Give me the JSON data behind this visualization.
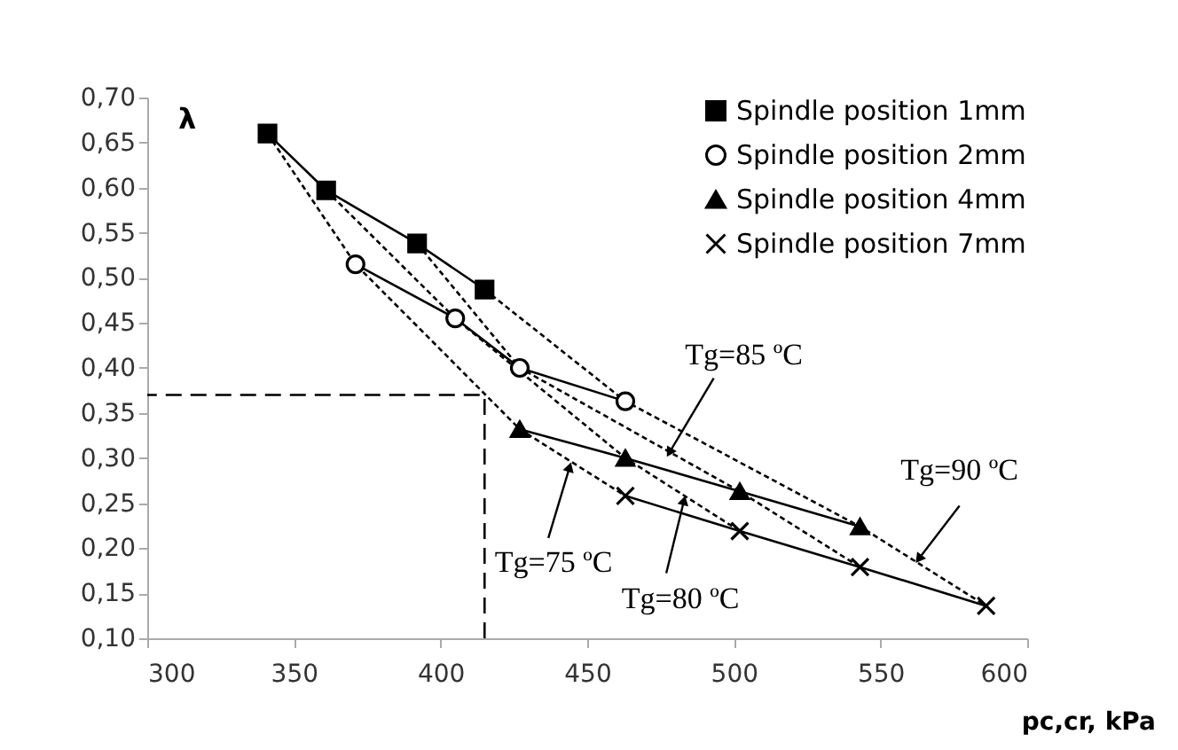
{
  "chart_data": {
    "type": "line",
    "xlabel": "pc,cr, kPa",
    "ylabel": "λ",
    "xlim": [
      300,
      600
    ],
    "xticks": [
      300,
      350,
      400,
      450,
      500,
      550,
      600
    ],
    "ylim": [
      0.1,
      0.7
    ],
    "yticks": [
      {
        "value": 0.1,
        "label": "0,10"
      },
      {
        "value": 0.15,
        "label": "0,15"
      },
      {
        "value": 0.2,
        "label": "0,20"
      },
      {
        "value": 0.25,
        "label": "0,25"
      },
      {
        "value": 0.3,
        "label": "0,30"
      },
      {
        "value": 0.35,
        "label": "0,35"
      },
      {
        "value": 0.4,
        "label": "0,40"
      },
      {
        "value": 0.45,
        "label": "0,45"
      },
      {
        "value": 0.5,
        "label": "0,50"
      },
      {
        "value": 0.55,
        "label": "0,55"
      },
      {
        "value": 0.6,
        "label": "0,60"
      },
      {
        "value": 0.65,
        "label": "0,65"
      },
      {
        "value": 0.7,
        "label": "0,70"
      }
    ],
    "grid": false,
    "legend": "top right",
    "series": [
      {
        "name": "Spindle position 1mm",
        "color": "#000000",
        "marker": "square",
        "line_style": "solid",
        "x": [
          341,
          361,
          392,
          415
        ],
        "values": [
          0.66,
          0.597,
          0.538,
          0.487
        ]
      },
      {
        "name": "Spindle position 2mm",
        "color": "#000000",
        "marker": "circle",
        "line_style": "solid",
        "x": [
          371,
          405,
          427,
          463
        ],
        "values": [
          0.515,
          0.455,
          0.4,
          0.363
        ]
      },
      {
        "name": "Spindle position 4mm",
        "color": "#000000",
        "marker": "triangle",
        "line_style": "solid",
        "x": [
          427,
          463,
          502,
          543
        ],
        "values": [
          0.332,
          0.3,
          0.263,
          0.224
        ]
      },
      {
        "name": "Spindle position 7mm",
        "color": "#000000",
        "marker": "cross",
        "line_style": "solid",
        "x": [
          463,
          502,
          543,
          586
        ],
        "values": [
          0.258,
          0.219,
          0.179,
          0.136
        ]
      },
      {
        "color": "#000000",
        "marker": "none",
        "line_style": "dotted",
        "x": [
          341,
          371,
          427,
          463
        ],
        "values": [
          0.66,
          0.515,
          0.332,
          0.258
        ]
      },
      {
        "color": "#000000",
        "marker": "none",
        "line_style": "dotted",
        "x": [
          361,
          405,
          463,
          502
        ],
        "values": [
          0.597,
          0.455,
          0.3,
          0.219
        ]
      },
      {
        "color": "#000000",
        "marker": "none",
        "line_style": "dotted",
        "x": [
          392,
          427,
          502,
          543
        ],
        "values": [
          0.538,
          0.4,
          0.263,
          0.179
        ]
      },
      {
        "color": "#000000",
        "marker": "none",
        "line_style": "dotted",
        "x": [
          415,
          463,
          543,
          586
        ],
        "values": [
          0.487,
          0.363,
          0.224,
          0.136
        ]
      },
      {
        "color": "#000000",
        "marker": "none",
        "line_style": "dashed",
        "x": [
          415,
          415,
          300
        ],
        "values": [
          0.1,
          0.37,
          0.37
        ]
      }
    ],
    "annotations": [
      {
        "text": "Tg=75 ºC",
        "x": 444,
        "y": 0.29
      },
      {
        "text": "Tg=80 ºC",
        "x": 483,
        "y": 0.253
      },
      {
        "text": "Tg=85 ºC",
        "x": 478,
        "y": 0.306
      },
      {
        "text": "Tg=90 ºC",
        "x": 563,
        "y": 0.188
      }
    ]
  }
}
